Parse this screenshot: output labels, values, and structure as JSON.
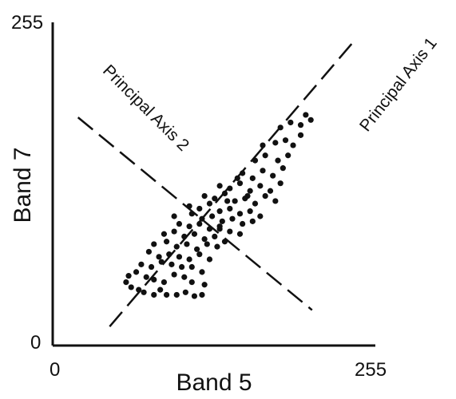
{
  "chart_data": {
    "type": "scatter",
    "title": "",
    "xlabel": "Band 5",
    "ylabel": "Band 7",
    "xlim": [
      0,
      255
    ],
    "ylim": [
      0,
      255
    ],
    "x_tick_labels": [
      "0",
      "255"
    ],
    "y_tick_labels": [
      "0",
      "255"
    ],
    "grid": false,
    "series": [
      {
        "values": [
          [
            60,
            55
          ],
          [
            58,
            50
          ],
          [
            62,
            46
          ],
          [
            68,
            44
          ],
          [
            72,
            42
          ],
          [
            80,
            40
          ],
          [
            85,
            44
          ],
          [
            90,
            40
          ],
          [
            98,
            40
          ],
          [
            105,
            42
          ],
          [
            112,
            39
          ],
          [
            118,
            40
          ],
          [
            66,
            58
          ],
          [
            74,
            54
          ],
          [
            80,
            52
          ],
          [
            88,
            50
          ],
          [
            96,
            56
          ],
          [
            104,
            54
          ],
          [
            110,
            50
          ],
          [
            120,
            48
          ],
          [
            70,
            64
          ],
          [
            78,
            62
          ],
          [
            86,
            66
          ],
          [
            94,
            64
          ],
          [
            102,
            62
          ],
          [
            110,
            62
          ],
          [
            118,
            58
          ],
          [
            76,
            74
          ],
          [
            84,
            70
          ],
          [
            92,
            72
          ],
          [
            100,
            70
          ],
          [
            108,
            68
          ],
          [
            116,
            72
          ],
          [
            124,
            68
          ],
          [
            80,
            80
          ],
          [
            90,
            82
          ],
          [
            98,
            78
          ],
          [
            106,
            80
          ],
          [
            114,
            76
          ],
          [
            122,
            80
          ],
          [
            130,
            78
          ],
          [
            88,
            88
          ],
          [
            96,
            90
          ],
          [
            104,
            86
          ],
          [
            112,
            88
          ],
          [
            120,
            84
          ],
          [
            128,
            86
          ],
          [
            136,
            82
          ],
          [
            100,
            96
          ],
          [
            108,
            94
          ],
          [
            116,
            96
          ],
          [
            124,
            92
          ],
          [
            132,
            94
          ],
          [
            140,
            90
          ],
          [
            148,
            88
          ],
          [
            110,
            104
          ],
          [
            118,
            100
          ],
          [
            126,
            102
          ],
          [
            134,
            98
          ],
          [
            142,
            100
          ],
          [
            150,
            96
          ],
          [
            158,
            98
          ],
          [
            108,
            110
          ],
          [
            116,
            108
          ],
          [
            124,
            112
          ],
          [
            132,
            106
          ],
          [
            140,
            108
          ],
          [
            148,
            104
          ],
          [
            156,
            106
          ],
          [
            164,
            102
          ],
          [
            120,
            118
          ],
          [
            128,
            116
          ],
          [
            136,
            120
          ],
          [
            144,
            114
          ],
          [
            152,
            116
          ],
          [
            160,
            112
          ],
          [
            168,
            118
          ],
          [
            176,
            114
          ],
          [
            132,
            126
          ],
          [
            140,
            124
          ],
          [
            148,
            128
          ],
          [
            156,
            122
          ],
          [
            164,
            126
          ],
          [
            172,
            122
          ],
          [
            180,
            128
          ],
          [
            150,
            136
          ],
          [
            158,
            132
          ],
          [
            166,
            138
          ],
          [
            174,
            134
          ],
          [
            182,
            140
          ],
          [
            160,
            146
          ],
          [
            168,
            150
          ],
          [
            178,
            146
          ],
          [
            186,
            150
          ],
          [
            166,
            158
          ],
          [
            176,
            160
          ],
          [
            184,
            162
          ],
          [
            190,
            158
          ],
          [
            196,
            166
          ],
          [
            180,
            172
          ],
          [
            188,
            176
          ],
          [
            196,
            174
          ],
          [
            200,
            182
          ],
          [
            204,
            178
          ],
          [
            132,
            92
          ],
          [
            96,
            102
          ],
          [
            138,
            114
          ],
          [
            146,
            132
          ],
          [
            154,
            118
          ]
        ]
      }
    ],
    "annotations": [
      {
        "text": "Principal Axis 1",
        "line_from": [
          45,
          15
        ],
        "line_to": [
          238,
          240
        ],
        "style": "dashed"
      },
      {
        "text": "Principal Axis 2",
        "line_from": [
          20,
          180
        ],
        "line_to": [
          205,
          28
        ],
        "style": "dashed"
      }
    ]
  }
}
